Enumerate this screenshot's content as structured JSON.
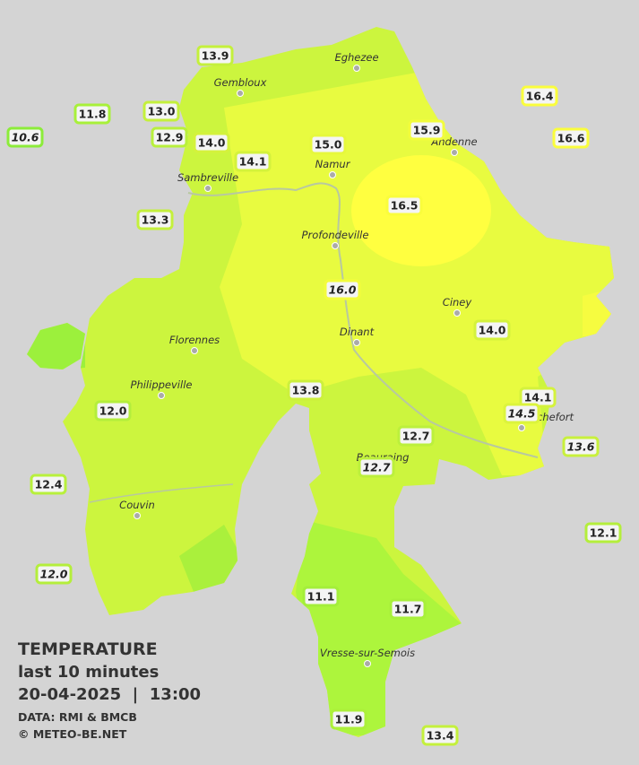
{
  "legend": {
    "title": "TEMPERATURE",
    "subtitle": "last 10 minutes",
    "date": "20-04-2025  |  13:00",
    "source": "DATA: RMI & BMCB",
    "credit": "© METEO-BE.NET"
  },
  "towns": [
    {
      "name": "Eghezee"
    },
    {
      "name": "Gembloux"
    },
    {
      "name": "Andenne"
    },
    {
      "name": "Namur"
    },
    {
      "name": "Sambreville"
    },
    {
      "name": "Profondeville"
    },
    {
      "name": "Ciney"
    },
    {
      "name": "Dinant"
    },
    {
      "name": "Florennes"
    },
    {
      "name": "Philippeville"
    },
    {
      "name": "Rochefort"
    },
    {
      "name": "Beauraing"
    },
    {
      "name": "Couvin"
    },
    {
      "name": "Vresse-sur-Semois"
    }
  ],
  "stations": [
    {
      "value": "13.9",
      "italic": false,
      "color": "#c4f03c"
    },
    {
      "value": "11.8",
      "italic": false,
      "color": "#a8f03a"
    },
    {
      "value": "13.0",
      "italic": false,
      "color": "#c4f03c"
    },
    {
      "value": "10.6",
      "italic": true,
      "color": "#8cec3a"
    },
    {
      "value": "12.9",
      "italic": false,
      "color": "#b8f03c"
    },
    {
      "value": "14.0",
      "italic": false,
      "color": "#d4f23c"
    },
    {
      "value": "14.1",
      "italic": false,
      "color": "#d4f23c"
    },
    {
      "value": "15.0",
      "italic": false,
      "color": "#e6f83c"
    },
    {
      "value": "15.9",
      "italic": false,
      "color": "#f2fc3c"
    },
    {
      "value": "16.4",
      "italic": false,
      "color": "#fafd3c"
    },
    {
      "value": "16.6",
      "italic": false,
      "color": "#fafd3c"
    },
    {
      "value": "16.5",
      "italic": false,
      "color": "#fafd3c"
    },
    {
      "value": "13.3",
      "italic": false,
      "color": "#c4f03c"
    },
    {
      "value": "16.0",
      "italic": true,
      "color": "#f2fc3c"
    },
    {
      "value": "14.0",
      "italic": false,
      "color": "#d4f23c"
    },
    {
      "value": "13.8",
      "italic": false,
      "color": "#ccf03c"
    },
    {
      "value": "14.1",
      "italic": false,
      "color": "#d4f23c"
    },
    {
      "value": "14.5",
      "italic": true,
      "color": "#dcf43c"
    },
    {
      "value": "12.0",
      "italic": false,
      "color": "#b4ee3c"
    },
    {
      "value": "12.7",
      "italic": false,
      "color": "#bcf03c"
    },
    {
      "value": "13.6",
      "italic": true,
      "color": "#c8f03c"
    },
    {
      "value": "12.7",
      "italic": true,
      "color": "#bcf03c"
    },
    {
      "value": "12.4",
      "italic": false,
      "color": "#b8f03c"
    },
    {
      "value": "12.1",
      "italic": false,
      "color": "#b4ee3c"
    },
    {
      "value": "12.0",
      "italic": true,
      "color": "#b4ee3c"
    },
    {
      "value": "11.1",
      "italic": false,
      "color": "#a4ee3a"
    },
    {
      "value": "11.7",
      "italic": false,
      "color": "#a8f03a"
    },
    {
      "value": "11.9",
      "italic": false,
      "color": "#acf03a"
    },
    {
      "value": "13.4",
      "italic": false,
      "color": "#c4f03c"
    }
  ]
}
